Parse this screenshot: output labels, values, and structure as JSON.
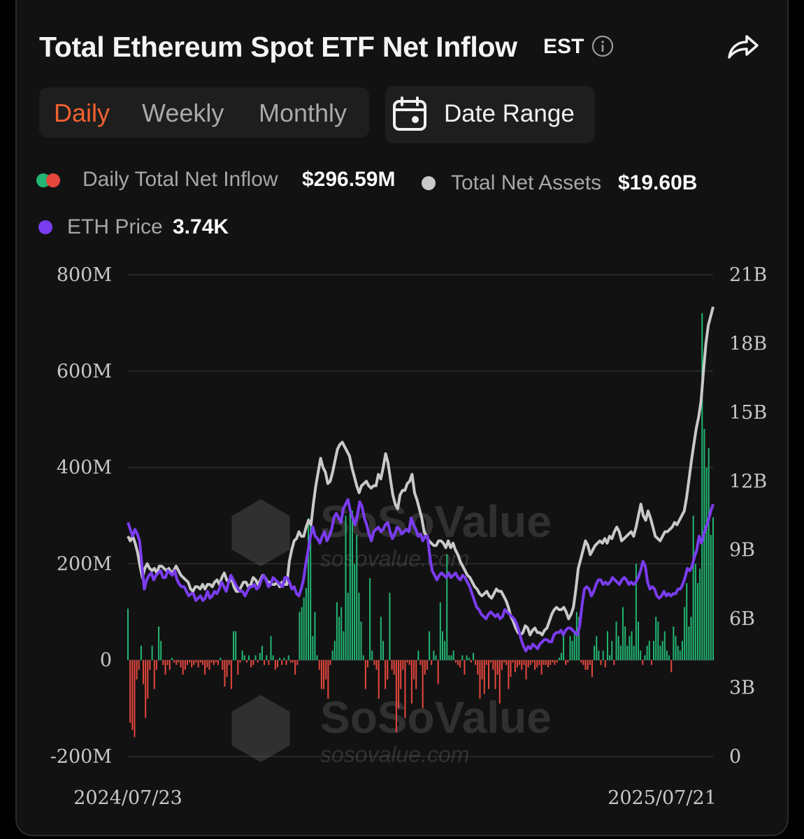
{
  "header": {
    "title": "Total Ethereum Spot ETF Net Inflow",
    "timezone": "EST",
    "info_icon": "info-icon",
    "share_icon": "share-icon"
  },
  "tabs": [
    {
      "label": "Daily",
      "active": true
    },
    {
      "label": "Weekly",
      "active": false
    },
    {
      "label": "Monthly",
      "active": false
    }
  ],
  "date_range": {
    "label": "Date Range",
    "icon": "calendar-icon"
  },
  "legend": {
    "inflow": {
      "label": "Daily Total Net Inflow",
      "value": "$296.59M"
    },
    "assets": {
      "label": "Total Net Assets",
      "value": "$19.60B"
    },
    "price": {
      "label": "ETH Price",
      "value": "3.74K"
    }
  },
  "watermark": {
    "brand": "SoSoValue",
    "url": "sosovalue.com"
  },
  "colors": {
    "positive": "#22b573",
    "negative": "#e5473e",
    "assets_line": "#c9c9c9",
    "price_line": "#7b3cf0",
    "accent": "#f2612f"
  },
  "chart_data": {
    "type": "bar",
    "x_start": "2024/07/23",
    "x_end": "2025/07/21",
    "left_axis": {
      "ticks": [
        "-200M",
        "0",
        "200M",
        "400M",
        "600M",
        "800M"
      ],
      "ylim": [
        -200,
        800
      ],
      "unit": "M"
    },
    "right_axis": {
      "ticks": [
        "0",
        "3B",
        "6B",
        "9B",
        "12B",
        "15B",
        "18B",
        "21B"
      ],
      "ylim": [
        0,
        21
      ],
      "unit": "B"
    },
    "grid": true,
    "series": [
      {
        "name": "Daily Total Net Inflow",
        "kind": "bar",
        "axis": "left",
        "values": [
          107,
          -130,
          -145,
          -160,
          -40,
          -20,
          30,
          -50,
          -120,
          -80,
          -20,
          30,
          -60,
          -20,
          70,
          40,
          -10,
          -30,
          -10,
          -20,
          5,
          -5,
          -10,
          -5,
          -15,
          -30,
          -20,
          -10,
          -5,
          -15,
          -10,
          -5,
          -15,
          -5,
          -10,
          -30,
          -15,
          -20,
          -5,
          -10,
          -5,
          -10,
          5,
          -20,
          -55,
          -35,
          -10,
          -60,
          60,
          60,
          -30,
          -5,
          20,
          10,
          -5,
          10,
          -15,
          -10,
          10,
          -5,
          15,
          30,
          -10,
          10,
          -10,
          50,
          10,
          -20,
          -15,
          5,
          -10,
          5,
          -10,
          10,
          -5,
          -5,
          -30,
          -10,
          100,
          110,
          130,
          150,
          295,
          280,
          50,
          100,
          10,
          -20,
          -60,
          -60,
          -40,
          -80,
          -10,
          20,
          40,
          120,
          90,
          110,
          60,
          300,
          140,
          320,
          310,
          200,
          260,
          140,
          80,
          10,
          -60,
          -15,
          170,
          20,
          -10,
          -20,
          -80,
          90,
          40,
          -60,
          -40,
          140,
          -20,
          -30,
          -150,
          -100,
          -60,
          -20,
          -120,
          -5,
          -10,
          -90,
          -40,
          -60,
          20,
          -10,
          -100,
          -30,
          -20,
          60,
          -10,
          20,
          10,
          -50,
          120,
          60,
          40,
          220,
          10,
          10,
          20,
          -5,
          -10,
          -15,
          10,
          -30,
          10,
          5,
          -5,
          15,
          -10,
          -30,
          -80,
          -40,
          -70,
          -10,
          -60,
          -5,
          -20,
          -60,
          -30,
          -90,
          -20,
          -5,
          -10,
          -60,
          -35,
          -5,
          -25,
          -15,
          -10,
          -20,
          -10,
          -40,
          -15,
          -10,
          -5,
          -20,
          -15,
          -10,
          -30,
          -10,
          -10,
          -15,
          -10,
          -5,
          -10,
          -5,
          5,
          15,
          55,
          -10,
          -5,
          50,
          40,
          60,
          100,
          90,
          -5,
          -10,
          -20,
          -20,
          -10,
          -35,
          30,
          50,
          20,
          -10,
          20,
          -15,
          60,
          10,
          40,
          -10,
          80,
          50,
          30,
          110,
          70,
          30,
          50,
          60,
          30,
          200,
          80,
          20,
          -10,
          10,
          30,
          40,
          -10,
          40,
          90,
          80,
          30,
          40,
          60,
          20,
          10,
          -25,
          70,
          50,
          30,
          20,
          40,
          110,
          160,
          70,
          90,
          300,
          200,
          160,
          190,
          720,
          480,
          400,
          440,
          260,
          296.59
        ]
      },
      {
        "name": "Total Net Assets",
        "kind": "line",
        "axis": "right",
        "values": [
          9.6,
          9.4,
          9.6,
          9.3,
          8.9,
          8.3,
          7.8,
          8.2,
          8.4,
          8.2,
          8.1,
          8.2,
          8.0,
          8.3,
          8.3,
          8.2,
          8.1,
          8.2,
          8.0,
          8.1,
          8.3,
          8.1,
          7.9,
          7.8,
          7.7,
          7.6,
          7.3,
          7.2,
          7.4,
          7.4,
          7.3,
          7.5,
          7.3,
          7.5,
          7.5,
          7.4,
          7.6,
          7.7,
          7.5,
          7.8,
          8.0,
          7.7,
          7.6,
          7.8,
          7.4,
          7.2,
          7.2,
          7.4,
          7.6,
          7.6,
          7.4,
          7.5,
          7.8,
          7.7,
          7.5,
          7.7,
          7.9,
          7.8,
          7.6,
          7.6,
          7.5,
          7.5,
          7.6,
          7.4,
          7.6,
          7.5,
          7.5,
          8.5,
          9.0,
          9.4,
          9.5,
          9.8,
          9.6,
          9.6,
          10.0,
          10.3,
          10.1,
          11.0,
          11.8,
          12.4,
          13.0,
          12.6,
          12.4,
          11.9,
          12.0,
          12.4,
          12.9,
          13.4,
          13.6,
          13.7,
          13.5,
          13.3,
          13.1,
          12.6,
          12.2,
          11.8,
          11.5,
          11.8,
          11.9,
          12.0,
          11.8,
          11.7,
          11.8,
          11.8,
          12.3,
          12.1,
          12.6,
          13.2,
          12.8,
          12.1,
          11.4,
          11.0,
          10.8,
          11.4,
          11.6,
          11.6,
          11.9,
          12.0,
          12.3,
          11.5,
          11.2,
          10.8,
          10.4,
          9.8,
          9.6,
          9.4,
          9.3,
          9.2,
          9.2,
          9.4,
          9.4,
          9.3,
          9.1,
          9.4,
          9.1,
          9.3,
          9.0,
          8.8,
          8.5,
          8.3,
          8.1,
          7.9,
          7.8,
          7.6,
          7.4,
          7.3,
          7.1,
          7.0,
          7.1,
          7.2,
          7.0,
          6.9,
          7.1,
          7.3,
          7.2,
          7.2,
          7.0,
          6.8,
          6.5,
          6.1,
          5.9,
          5.6,
          5.4,
          5.3,
          5.4,
          5.7,
          5.6,
          5.3,
          5.5,
          5.6,
          5.4,
          5.4,
          5.3,
          5.5,
          5.6,
          5.9,
          6.2,
          6.4,
          6.5,
          6.4,
          6.4,
          6.5,
          6.3,
          6.0,
          6.2,
          6.5,
          7.3,
          8.2,
          8.6,
          9.0,
          9.4,
          9.2,
          8.8,
          9.0,
          9.2,
          9.3,
          9.4,
          9.3,
          9.5,
          9.3,
          9.6,
          9.5,
          9.8,
          10.0,
          9.8,
          9.4,
          9.5,
          9.6,
          9.7,
          9.8,
          9.6,
          10.0,
          10.5,
          11.0,
          10.5,
          10.3,
          10.7,
          10.4,
          10.0,
          9.6,
          9.5,
          9.4,
          9.6,
          9.8,
          9.8,
          9.9,
          10.0,
          10.2,
          10.1,
          10.3,
          10.5,
          10.7,
          11.3,
          12.1,
          12.9,
          13.6,
          14.3,
          14.8,
          15.5,
          16.8,
          18.0,
          18.8,
          19.2,
          19.6
        ]
      },
      {
        "name": "ETH Price",
        "kind": "line",
        "axis": "right",
        "price_range_k": [
          1.47,
          3.74
        ],
        "values": [
          10.2,
          9.9,
          9.6,
          9.9,
          9.7,
          9.4,
          8.3,
          7.3,
          7.7,
          7.9,
          8.0,
          7.7,
          7.9,
          8.0,
          8.1,
          7.8,
          7.8,
          8.1,
          8.0,
          7.9,
          8.1,
          7.7,
          7.5,
          7.4,
          7.4,
          7.2,
          7.0,
          7.1,
          7.1,
          6.8,
          6.9,
          7.0,
          6.8,
          6.9,
          7.2,
          6.9,
          7.0,
          7.2,
          7.1,
          7.3,
          7.6,
          7.4,
          7.2,
          7.6,
          7.9,
          7.7,
          7.5,
          7.3,
          7.2,
          7.2,
          7.0,
          7.2,
          7.4,
          7.4,
          7.5,
          7.3,
          7.4,
          7.7,
          7.9,
          7.7,
          7.4,
          7.5,
          7.8,
          7.7,
          7.6,
          7.5,
          7.4,
          7.8,
          7.8,
          7.6,
          7.3,
          7.4,
          7.1,
          7.0,
          7.3,
          7.7,
          8.4,
          9.0,
          9.6,
          10.0,
          9.6,
          9.5,
          9.3,
          9.6,
          9.8,
          9.4,
          9.6,
          9.9,
          10.4,
          10.6,
          10.4,
          10.2,
          10.8,
          11.0,
          11.2,
          10.7,
          10.4,
          10.1,
          10.5,
          11.1,
          10.9,
          10.4,
          10.1,
          9.7,
          9.4,
          9.8,
          9.9,
          10.0,
          9.8,
          9.9,
          10.1,
          10.2,
          9.8,
          9.5,
          9.7,
          10.0,
          9.9,
          9.7,
          9.8,
          9.9,
          9.8,
          10.4,
          10.1,
          9.9,
          9.6,
          9.7,
          9.4,
          9.6,
          9.6,
          8.7,
          8.1,
          7.9,
          7.7,
          7.9,
          8.0,
          7.9,
          7.8,
          8.0,
          7.8,
          7.9,
          8.0,
          7.8,
          7.7,
          7.9,
          7.8,
          7.6,
          7.4,
          7.1,
          6.8,
          6.5,
          6.4,
          6.2,
          6.1,
          6.0,
          6.2,
          6.3,
          6.2,
          6.1,
          6.2,
          6.0,
          6.1,
          6.4,
          6.3,
          6.2,
          6.1,
          6.0,
          5.8,
          5.5,
          5.1,
          4.8,
          4.6,
          4.8,
          4.7,
          4.9,
          4.8,
          4.7,
          4.9,
          5.0,
          5.1,
          5.1,
          5.0,
          5.0,
          5.3,
          5.4,
          5.4,
          5.5,
          5.3,
          5.5,
          5.6,
          5.6,
          5.5,
          5.4,
          5.3,
          5.7,
          6.6,
          7.3,
          7.4,
          7.3,
          7.0,
          7.2,
          7.5,
          7.7,
          7.7,
          7.5,
          7.6,
          7.5,
          7.6,
          7.8,
          7.7,
          7.6,
          7.5,
          7.7,
          7.8,
          7.7,
          7.5,
          7.6,
          7.5,
          7.6,
          7.8,
          8.1,
          8.5,
          8.3,
          7.6,
          7.3,
          7.4,
          7.3,
          7.0,
          6.9,
          7.0,
          7.2,
          7.0,
          7.1,
          7.0,
          7.1,
          7.1,
          7.3,
          7.3,
          7.5,
          7.8,
          8.2,
          8.1,
          8.3,
          8.7,
          9.0,
          9.6,
          9.3,
          9.7,
          10.0,
          10.3,
          10.7,
          11.0
        ]
      }
    ]
  }
}
